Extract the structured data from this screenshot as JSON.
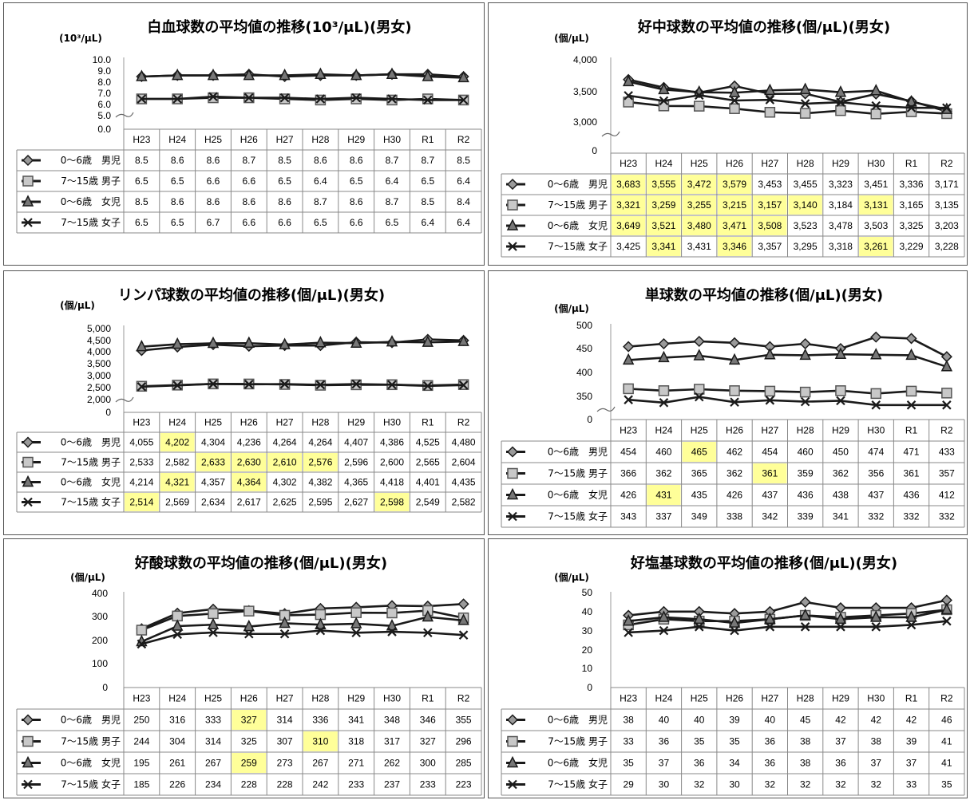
{
  "series_names": [
    "0～6歳　男児",
    "7～15歳 男子",
    "0～6歳　女児",
    "7～15歳 女子"
  ],
  "highlight_color": "#ffff99",
  "line_color": "#1a1a1a",
  "chart_data": [
    {
      "type": "line",
      "title": "白血球数の平均値の推移(10³/μL)(男女)",
      "unit_label": "(10³/μL)",
      "categories": [
        "H23",
        "H24",
        "H25",
        "H26",
        "H27",
        "H28",
        "H29",
        "H30",
        "R1",
        "R2"
      ],
      "y_ticks": [
        "10.0",
        "9.0",
        "8.0",
        "7.0",
        "6.0",
        "5.0",
        "0.0"
      ],
      "axis_break": true,
      "series": [
        {
          "name": "0～6歳　男児",
          "marker": "diamond",
          "values": [
            "8.5",
            "8.6",
            "8.6",
            "8.7",
            "8.5",
            "8.6",
            "8.6",
            "8.7",
            "8.7",
            "8.5"
          ],
          "highlight": []
        },
        {
          "name": "7～15歳 男子",
          "marker": "square",
          "values": [
            "6.5",
            "6.5",
            "6.6",
            "6.6",
            "6.5",
            "6.4",
            "6.5",
            "6.4",
            "6.5",
            "6.4"
          ],
          "highlight": []
        },
        {
          "name": "0～6歳　女児",
          "marker": "triangle",
          "values": [
            "8.5",
            "8.6",
            "8.6",
            "8.6",
            "8.6",
            "8.7",
            "8.6",
            "8.7",
            "8.5",
            "8.4"
          ],
          "highlight": []
        },
        {
          "name": "7～15歳 女子",
          "marker": "x",
          "values": [
            "6.5",
            "6.5",
            "6.7",
            "6.6",
            "6.6",
            "6.5",
            "6.6",
            "6.5",
            "6.4",
            "6.4"
          ],
          "highlight": []
        }
      ]
    },
    {
      "type": "line",
      "title": "好中球数の平均値の推移(個/μL)(男女)",
      "unit_label": "(個/μL)",
      "categories": [
        "H23",
        "H24",
        "H25",
        "H26",
        "H27",
        "H28",
        "H29",
        "H30",
        "R1",
        "R2"
      ],
      "y_ticks": [
        "4,000",
        "3,500",
        "3,000",
        "0"
      ],
      "axis_break": true,
      "series": [
        {
          "name": "0～6歳　男児",
          "marker": "diamond",
          "values": [
            "3,683",
            "3,555",
            "3,472",
            "3,579",
            "3,453",
            "3,455",
            "3,323",
            "3,451",
            "3,336",
            "3,171"
          ],
          "highlight": [
            0,
            1,
            2,
            3
          ]
        },
        {
          "name": "7～15歳 男子",
          "marker": "square",
          "values": [
            "3,321",
            "3,259",
            "3,255",
            "3,215",
            "3,157",
            "3,140",
            "3,184",
            "3,131",
            "3,165",
            "3,135"
          ],
          "highlight": [
            0,
            1,
            2,
            3,
            4,
            5,
            7
          ]
        },
        {
          "name": "0～6歳　女児",
          "marker": "triangle",
          "values": [
            "3,649",
            "3,521",
            "3,480",
            "3,471",
            "3,508",
            "3,523",
            "3,478",
            "3,503",
            "3,325",
            "3,203"
          ],
          "highlight": [
            0,
            1,
            2,
            3,
            4
          ]
        },
        {
          "name": "7～15歳 女子",
          "marker": "x",
          "values": [
            "3,425",
            "3,341",
            "3,431",
            "3,346",
            "3,357",
            "3,295",
            "3,318",
            "3,261",
            "3,229",
            "3,228"
          ],
          "highlight": [
            1,
            3,
            7
          ]
        }
      ]
    },
    {
      "type": "line",
      "title": "リンパ球数の平均値の推移(個/μL)(男女)",
      "unit_label": "(個/μL)",
      "categories": [
        "H23",
        "H24",
        "H25",
        "H26",
        "H27",
        "H28",
        "H29",
        "H30",
        "R1",
        "R2"
      ],
      "y_ticks": [
        "5,000",
        "4,500",
        "4,000",
        "3,500",
        "3,000",
        "2,500",
        "2,000",
        "0"
      ],
      "axis_break": true,
      "series": [
        {
          "name": "0～6歳　男児",
          "marker": "diamond",
          "values": [
            "4,055",
            "4,202",
            "4,304",
            "4,236",
            "4,264",
            "4,264",
            "4,407",
            "4,386",
            "4,525",
            "4,480"
          ],
          "highlight": [
            1
          ]
        },
        {
          "name": "7～15歳 男子",
          "marker": "square",
          "values": [
            "2,533",
            "2,582",
            "2,633",
            "2,630",
            "2,610",
            "2,576",
            "2,596",
            "2,600",
            "2,565",
            "2,604"
          ],
          "highlight": [
            2,
            3,
            4,
            5
          ]
        },
        {
          "name": "0～6歳　女児",
          "marker": "triangle",
          "values": [
            "4,214",
            "4,321",
            "4,357",
            "4,364",
            "4,302",
            "4,382",
            "4,365",
            "4,418",
            "4,401",
            "4,435"
          ],
          "highlight": [
            1,
            3
          ]
        },
        {
          "name": "7～15歳 女子",
          "marker": "x",
          "values": [
            "2,514",
            "2,569",
            "2,634",
            "2,617",
            "2,625",
            "2,595",
            "2,627",
            "2,598",
            "2,549",
            "2,582"
          ],
          "highlight": [
            0,
            7
          ]
        }
      ]
    },
    {
      "type": "line",
      "title": "単球数の平均値の推移(個/μL)(男女)",
      "unit_label": "(個/μL)",
      "categories": [
        "H23",
        "H24",
        "H25",
        "H26",
        "H27",
        "H28",
        "H29",
        "H30",
        "R1",
        "R2"
      ],
      "y_ticks": [
        "500",
        "450",
        "400",
        "350",
        "0"
      ],
      "axis_break": true,
      "series": [
        {
          "name": "0～6歳　男児",
          "marker": "diamond",
          "values": [
            "454",
            "460",
            "465",
            "462",
            "454",
            "460",
            "450",
            "474",
            "471",
            "433"
          ],
          "highlight": [
            2
          ]
        },
        {
          "name": "7～15歳 男子",
          "marker": "square",
          "values": [
            "366",
            "362",
            "365",
            "362",
            "361",
            "359",
            "362",
            "356",
            "361",
            "357"
          ],
          "highlight": [
            4
          ]
        },
        {
          "name": "0～6歳　女児",
          "marker": "triangle",
          "values": [
            "426",
            "431",
            "435",
            "426",
            "437",
            "436",
            "438",
            "437",
            "436",
            "412"
          ],
          "highlight": [
            1
          ]
        },
        {
          "name": "7～15歳 女子",
          "marker": "x",
          "values": [
            "343",
            "337",
            "349",
            "338",
            "342",
            "339",
            "341",
            "332",
            "332",
            "332"
          ],
          "highlight": []
        }
      ]
    },
    {
      "type": "line",
      "title": "好酸球数の平均値の推移(個/μL)(男女)",
      "unit_label": "(個/μL)",
      "categories": [
        "H23",
        "H24",
        "H25",
        "H26",
        "H27",
        "H28",
        "H29",
        "H30",
        "R1",
        "R2"
      ],
      "y_ticks": [
        "400",
        "300",
        "200",
        "100",
        "0"
      ],
      "axis_break": false,
      "series": [
        {
          "name": "0～6歳　男児",
          "marker": "diamond",
          "values": [
            "250",
            "316",
            "333",
            "327",
            "314",
            "336",
            "341",
            "348",
            "346",
            "355"
          ],
          "highlight": [
            3
          ]
        },
        {
          "name": "7～15歳 男子",
          "marker": "square",
          "values": [
            "244",
            "304",
            "314",
            "325",
            "307",
            "310",
            "318",
            "317",
            "327",
            "296"
          ],
          "highlight": [
            5
          ]
        },
        {
          "name": "0～6歳　女児",
          "marker": "triangle",
          "values": [
            "195",
            "261",
            "267",
            "259",
            "273",
            "267",
            "271",
            "262",
            "300",
            "285"
          ],
          "highlight": [
            3
          ]
        },
        {
          "name": "7～15歳 女子",
          "marker": "x",
          "values": [
            "185",
            "226",
            "234",
            "228",
            "228",
            "242",
            "233",
            "237",
            "233",
            "223"
          ],
          "highlight": []
        }
      ]
    },
    {
      "type": "line",
      "title": "好塩基球数の平均値の推移(個/μL)(男女)",
      "unit_label": "(個/μL)",
      "categories": [
        "H23",
        "H24",
        "H25",
        "H26",
        "H27",
        "H28",
        "H29",
        "H30",
        "R1",
        "R2"
      ],
      "y_ticks": [
        "50",
        "40",
        "30",
        "20",
        "10",
        "0"
      ],
      "axis_break": false,
      "series": [
        {
          "name": "0～6歳　男児",
          "marker": "diamond",
          "values": [
            "38",
            "40",
            "40",
            "39",
            "40",
            "45",
            "42",
            "42",
            "42",
            "46"
          ],
          "highlight": []
        },
        {
          "name": "7～15歳 男子",
          "marker": "square",
          "values": [
            "33",
            "36",
            "35",
            "35",
            "36",
            "38",
            "37",
            "38",
            "39",
            "41"
          ],
          "highlight": []
        },
        {
          "name": "0～6歳　女児",
          "marker": "triangle",
          "values": [
            "35",
            "37",
            "36",
            "34",
            "36",
            "38",
            "36",
            "37",
            "37",
            "41"
          ],
          "highlight": []
        },
        {
          "name": "7～15歳 女子",
          "marker": "x",
          "values": [
            "29",
            "30",
            "32",
            "30",
            "32",
            "32",
            "32",
            "32",
            "33",
            "35"
          ],
          "highlight": []
        }
      ]
    }
  ]
}
